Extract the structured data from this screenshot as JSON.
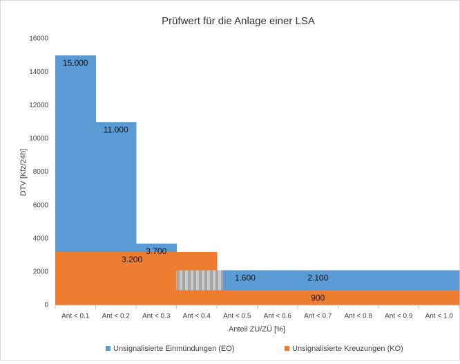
{
  "chart_data": {
    "type": "step-area",
    "title": "Prüfwert für die Anlage einer LSA",
    "y_label": "DTV [Kfz/24h]",
    "x_label": "Anteil ZU/ZÜ [%]",
    "categories": [
      "Ant < 0.1",
      "Ant < 0.2",
      "Ant < 0.3",
      "Ant < 0.4",
      "Ant < 0.5",
      "Ant < 0.6",
      "Ant < 0.7",
      "Ant < 0.8",
      "Ant < 0.9",
      "Ant < 1.0"
    ],
    "series": [
      {
        "name": "Unsignalisierte Einmündungen (EO)",
        "color": "#5b9bd5",
        "values": [
          15000,
          11000,
          3700,
          2100,
          2100,
          2100,
          2100,
          2100,
          2100,
          2100
        ],
        "value_labels": [
          "15.000",
          "11.000",
          "3.700",
          null,
          null,
          null,
          "2.100",
          null,
          null,
          null
        ]
      },
      {
        "name": "Unsignalisierte Kreuzungen (KO)",
        "color": "#ed7d31",
        "values": [
          3200,
          3200,
          3200,
          3200,
          900,
          900,
          900,
          900,
          900,
          900
        ],
        "value_labels": [
          null,
          "3.200",
          null,
          null,
          null,
          null,
          "900",
          null,
          null,
          null
        ]
      }
    ],
    "annotation": {
      "value": 1600,
      "label": "1.600"
    },
    "ylim": [
      0,
      16000
    ],
    "yticks": [
      0,
      2000,
      4000,
      6000,
      8000,
      10000,
      12000,
      14000,
      16000
    ],
    "legend": "bottom"
  }
}
